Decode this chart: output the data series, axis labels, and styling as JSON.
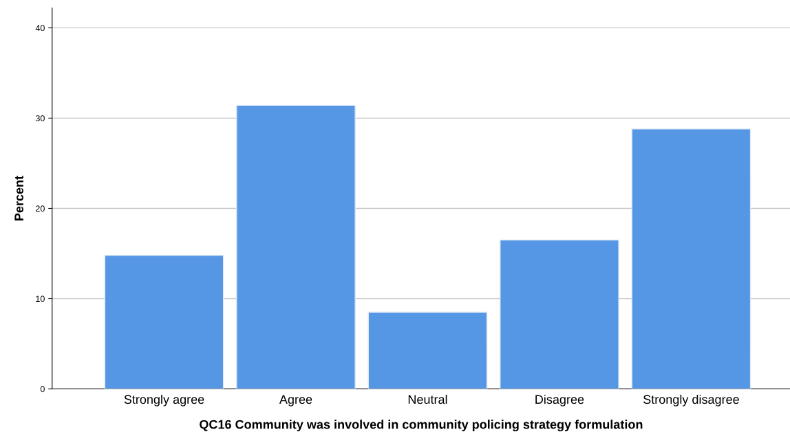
{
  "chart_data": {
    "type": "bar",
    "xlabel": "QC16 Community was involved in community policing strategy formulation",
    "ylabel": "Percent",
    "categories": [
      "Strongly agree",
      "Agree",
      "Neutral",
      "Disagree",
      "Strongly disagree"
    ],
    "values": [
      14.8,
      31.4,
      8.5,
      16.5,
      28.8
    ],
    "color": "#5596e5",
    "ylim": [
      0,
      42.2
    ],
    "yticks": [
      0,
      10,
      20,
      30,
      40
    ],
    "grid": "y",
    "legend": false
  }
}
